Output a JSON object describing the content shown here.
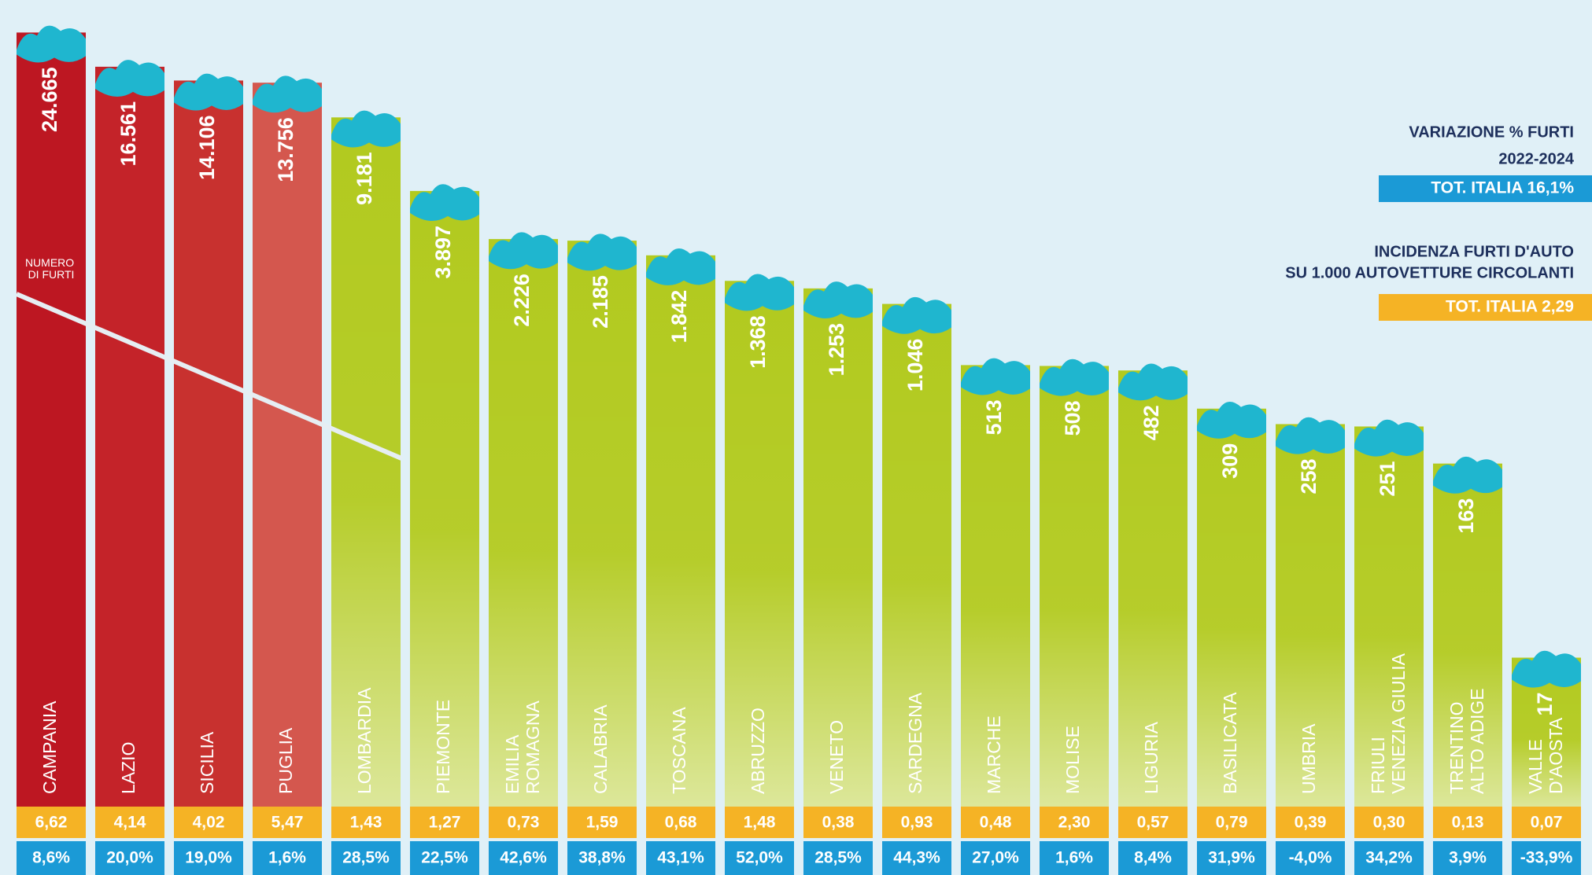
{
  "chart_data": {
    "type": "bar",
    "categories": [
      "CAMPANIA",
      "LAZIO",
      "SICILIA",
      "PUGLIA",
      "LOMBARDIA",
      "PIEMONTE",
      "EMILIA ROMAGNA",
      "CALABRIA",
      "TOSCANA",
      "ABRUZZO",
      "VENETO",
      "SARDEGNA",
      "MARCHE",
      "MOLISE",
      "LIGURIA",
      "BASILICATA",
      "UMBRIA",
      "FRIULI VENEZIA GIULIA",
      "TRENTINO ALTO ADIGE",
      "VALLE D'AOSTA"
    ],
    "values": [
      24665,
      16561,
      14106,
      13756,
      9181,
      3897,
      2226,
      2185,
      1842,
      1368,
      1253,
      1046,
      513,
      508,
      482,
      309,
      258,
      251,
      163,
      17
    ],
    "value_labels": [
      "24.665",
      "16.561",
      "14.106",
      "13.756",
      "9.181",
      "3.897",
      "2.226",
      "2.185",
      "1.842",
      "1.368",
      "1.253",
      "1.046",
      "513",
      "508",
      "482",
      "309",
      "258",
      "251",
      "163",
      "17"
    ],
    "colors": [
      "#bd1722",
      "#c42329",
      "#c8312f",
      "#d4574e",
      "#b2ca1f",
      "#b2ca1f",
      "#b2ca1f",
      "#b2ca1f",
      "#b2ca1f",
      "#b2ca1f",
      "#b2ca1f",
      "#b2ca1f",
      "#b2ca1f",
      "#b2ca1f",
      "#b2ca1f",
      "#b2ca1f",
      "#b2ca1f",
      "#b2ca1f",
      "#b2ca1f",
      "#b2ca1f"
    ],
    "log_scale": true,
    "ylim": [
      3,
      30000
    ],
    "annotation": "NUMERO DI FURTI",
    "incidence": {
      "title": "INCIDENZA FURTI D'AUTO",
      "subtitle": "SU 1.000 AUTOVETTURE CIRCOLANTI",
      "total_label": "TOT. ITALIA 2,29",
      "color": "#f5b325",
      "values": [
        6.62,
        4.14,
        4.02,
        5.47,
        1.43,
        1.27,
        0.73,
        1.59,
        0.68,
        1.48,
        0.38,
        0.93,
        0.48,
        2.3,
        0.57,
        0.79,
        0.39,
        0.3,
        0.13,
        0.07
      ],
      "value_labels": [
        "6,62",
        "4,14",
        "4,02",
        "5,47",
        "1,43",
        "1,27",
        "0,73",
        "1,59",
        "0,68",
        "1,48",
        "0,38",
        "0,93",
        "0,48",
        "2,30",
        "0,57",
        "0,79",
        "0,39",
        "0,30",
        "0,13",
        "0,07"
      ]
    },
    "variation": {
      "title": "VARIAZIONE % FURTI",
      "subtitle": "2022-2024",
      "total_label": "TOT. ITALIA 16,1%",
      "color": "#1b9ad6",
      "values": [
        8.6,
        20.0,
        19.0,
        1.6,
        28.5,
        22.5,
        42.6,
        38.8,
        43.1,
        52.0,
        28.5,
        44.3,
        27.0,
        1.6,
        8.4,
        31.9,
        -4.0,
        34.2,
        3.9,
        -33.9
      ],
      "value_labels": [
        "8,6%",
        "20,0%",
        "19,0%",
        "1,6%",
        "28,5%",
        "22,5%",
        "42,6%",
        "38,8%",
        "43,1%",
        "52,0%",
        "28,5%",
        "44,3%",
        "27,0%",
        "1,6%",
        "8,4%",
        "31,9%",
        "-4,0%",
        "34,2%",
        "3,9%",
        "-33,9%"
      ]
    }
  }
}
